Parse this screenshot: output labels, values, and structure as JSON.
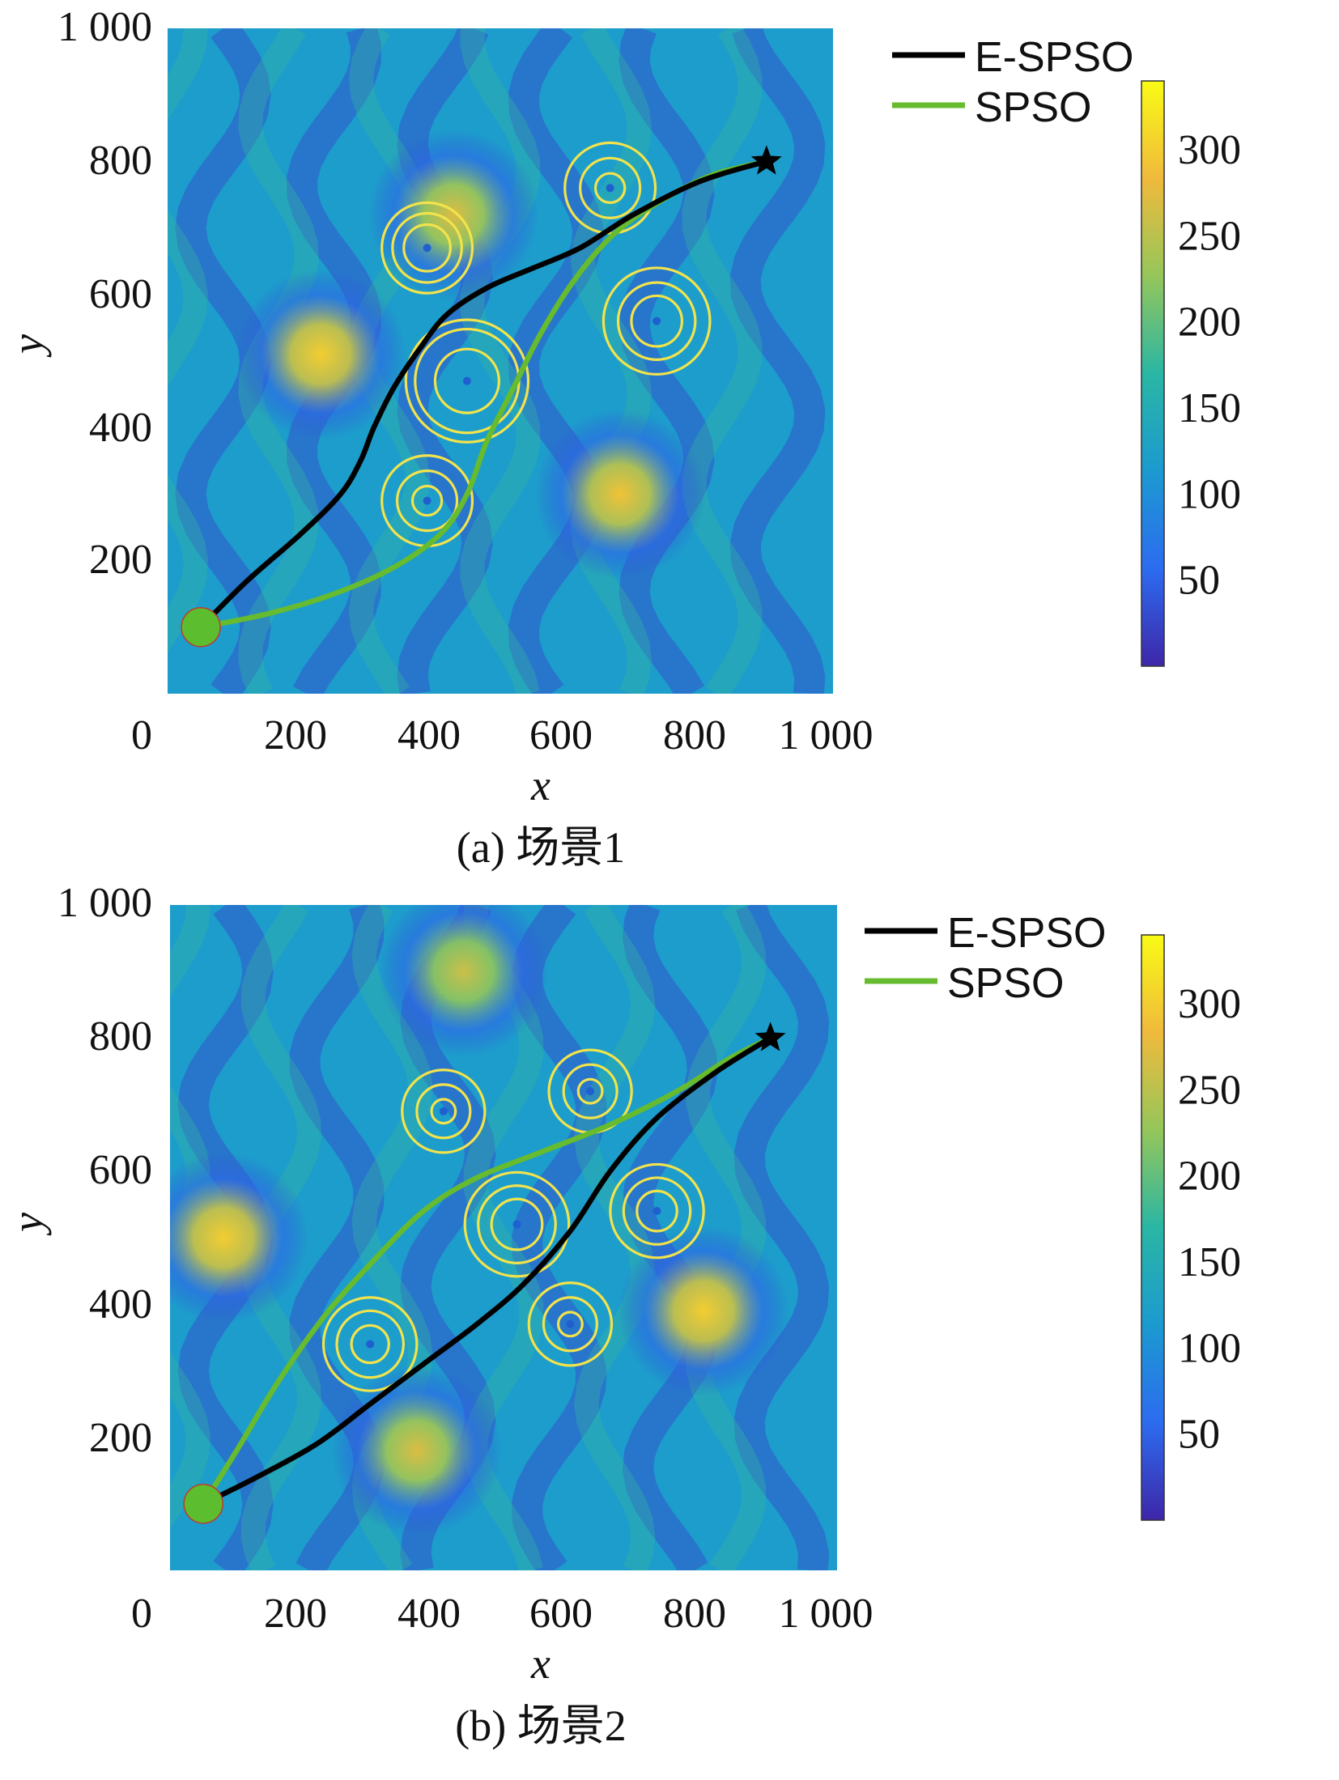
{
  "colors": {
    "e_spso": "#000000",
    "spso": "#66bb2e",
    "threat_ring": "#f2e34c",
    "start_marker": "#5cbd2e",
    "goal_marker": "#000000",
    "colormap": [
      "#3e26a8",
      "#2c6cf0",
      "#1c9ad0",
      "#2ab6a4",
      "#95c65a",
      "#f0ba3c",
      "#f9fb15"
    ]
  },
  "chart_data": [
    {
      "type": "heatmap",
      "caption": "(a) 场景1",
      "xlabel": "x",
      "ylabel": "y",
      "xlim": [
        0,
        1000
      ],
      "ylim": [
        0,
        1000
      ],
      "x_ticks": [
        "0",
        "200",
        "400",
        "600",
        "800",
        "1 000"
      ],
      "y_ticks": [
        "200",
        "400",
        "600",
        "800",
        "1 000"
      ],
      "colorbar": {
        "range": [
          0,
          340
        ],
        "ticks": [
          "50",
          "100",
          "150",
          "200",
          "250",
          "300"
        ]
      },
      "legend": {
        "position": "top-right",
        "entries": [
          "E-SPSO",
          "SPSO"
        ]
      },
      "start": [
        50,
        100
      ],
      "goal": [
        900,
        800
      ],
      "series": [
        {
          "name": "E-SPSO",
          "points": [
            [
              50,
              100
            ],
            [
              120,
              170
            ],
            [
              200,
              240
            ],
            [
              260,
              300
            ],
            [
              290,
              350
            ],
            [
              310,
              400
            ],
            [
              340,
              460
            ],
            [
              380,
              520
            ],
            [
              420,
              570
            ],
            [
              480,
              610
            ],
            [
              550,
              640
            ],
            [
              620,
              670
            ],
            [
              700,
              720
            ],
            [
              800,
              770
            ],
            [
              900,
              800
            ]
          ]
        },
        {
          "name": "SPSO",
          "points": [
            [
              50,
              100
            ],
            [
              150,
              120
            ],
            [
              250,
              150
            ],
            [
              340,
              190
            ],
            [
              410,
              240
            ],
            [
              450,
              300
            ],
            [
              480,
              380
            ],
            [
              520,
              460
            ],
            [
              560,
              540
            ],
            [
              610,
              620
            ],
            [
              670,
              690
            ],
            [
              740,
              740
            ],
            [
              820,
              780
            ],
            [
              900,
              800
            ]
          ]
        }
      ],
      "threats": [
        {
          "x": 390,
          "y": 670,
          "r": [
            35,
            52,
            68
          ]
        },
        {
          "x": 665,
          "y": 760,
          "r": [
            22,
            45,
            68
          ]
        },
        {
          "x": 450,
          "y": 470,
          "r": [
            48,
            78,
            92
          ]
        },
        {
          "x": 735,
          "y": 560,
          "r": [
            38,
            58,
            80
          ]
        },
        {
          "x": 390,
          "y": 290,
          "r": [
            22,
            45,
            68
          ]
        }
      ],
      "peaks": [
        {
          "x": 430,
          "y": 720,
          "v": 270
        },
        {
          "x": 230,
          "y": 510,
          "v": 300
        },
        {
          "x": 680,
          "y": 300,
          "v": 290
        }
      ]
    },
    {
      "type": "heatmap",
      "caption": "(b) 场景2",
      "xlabel": "x",
      "ylabel": "y",
      "xlim": [
        0,
        1000
      ],
      "ylim": [
        0,
        1000
      ],
      "x_ticks": [
        "0",
        "200",
        "400",
        "600",
        "800",
        "1 000"
      ],
      "y_ticks": [
        "200",
        "400",
        "600",
        "800",
        "1 000"
      ],
      "colorbar": {
        "range": [
          0,
          340
        ],
        "ticks": [
          "50",
          "100",
          "150",
          "200",
          "250",
          "300"
        ]
      },
      "legend": {
        "position": "top-right",
        "entries": [
          "E-SPSO",
          "SPSO"
        ]
      },
      "start": [
        50,
        100
      ],
      "goal": [
        900,
        800
      ],
      "series": [
        {
          "name": "E-SPSO",
          "points": [
            [
              50,
              100
            ],
            [
              130,
              140
            ],
            [
              220,
              190
            ],
            [
              300,
              250
            ],
            [
              380,
              310
            ],
            [
              460,
              370
            ],
            [
              530,
              430
            ],
            [
              600,
              510
            ],
            [
              660,
              600
            ],
            [
              730,
              680
            ],
            [
              820,
              750
            ],
            [
              900,
              800
            ]
          ]
        },
        {
          "name": "SPSO",
          "points": [
            [
              50,
              100
            ],
            [
              100,
              180
            ],
            [
              160,
              280
            ],
            [
              230,
              380
            ],
            [
              300,
              460
            ],
            [
              380,
              540
            ],
            [
              460,
              590
            ],
            [
              560,
              630
            ],
            [
              660,
              670
            ],
            [
              760,
              720
            ],
            [
              840,
              770
            ],
            [
              900,
              800
            ]
          ]
        }
      ],
      "threats": [
        {
          "x": 410,
          "y": 690,
          "r": [
            18,
            40,
            62
          ]
        },
        {
          "x": 630,
          "y": 720,
          "r": [
            18,
            40,
            62
          ]
        },
        {
          "x": 520,
          "y": 520,
          "r": [
            38,
            58,
            78
          ]
        },
        {
          "x": 730,
          "y": 540,
          "r": [
            30,
            50,
            70
          ]
        },
        {
          "x": 600,
          "y": 370,
          "r": [
            18,
            40,
            62
          ]
        },
        {
          "x": 300,
          "y": 340,
          "r": [
            28,
            50,
            70
          ]
        }
      ],
      "peaks": [
        {
          "x": 440,
          "y": 900,
          "v": 260
        },
        {
          "x": 80,
          "y": 500,
          "v": 300
        },
        {
          "x": 800,
          "y": 390,
          "v": 300
        },
        {
          "x": 370,
          "y": 180,
          "v": 270
        }
      ]
    }
  ]
}
